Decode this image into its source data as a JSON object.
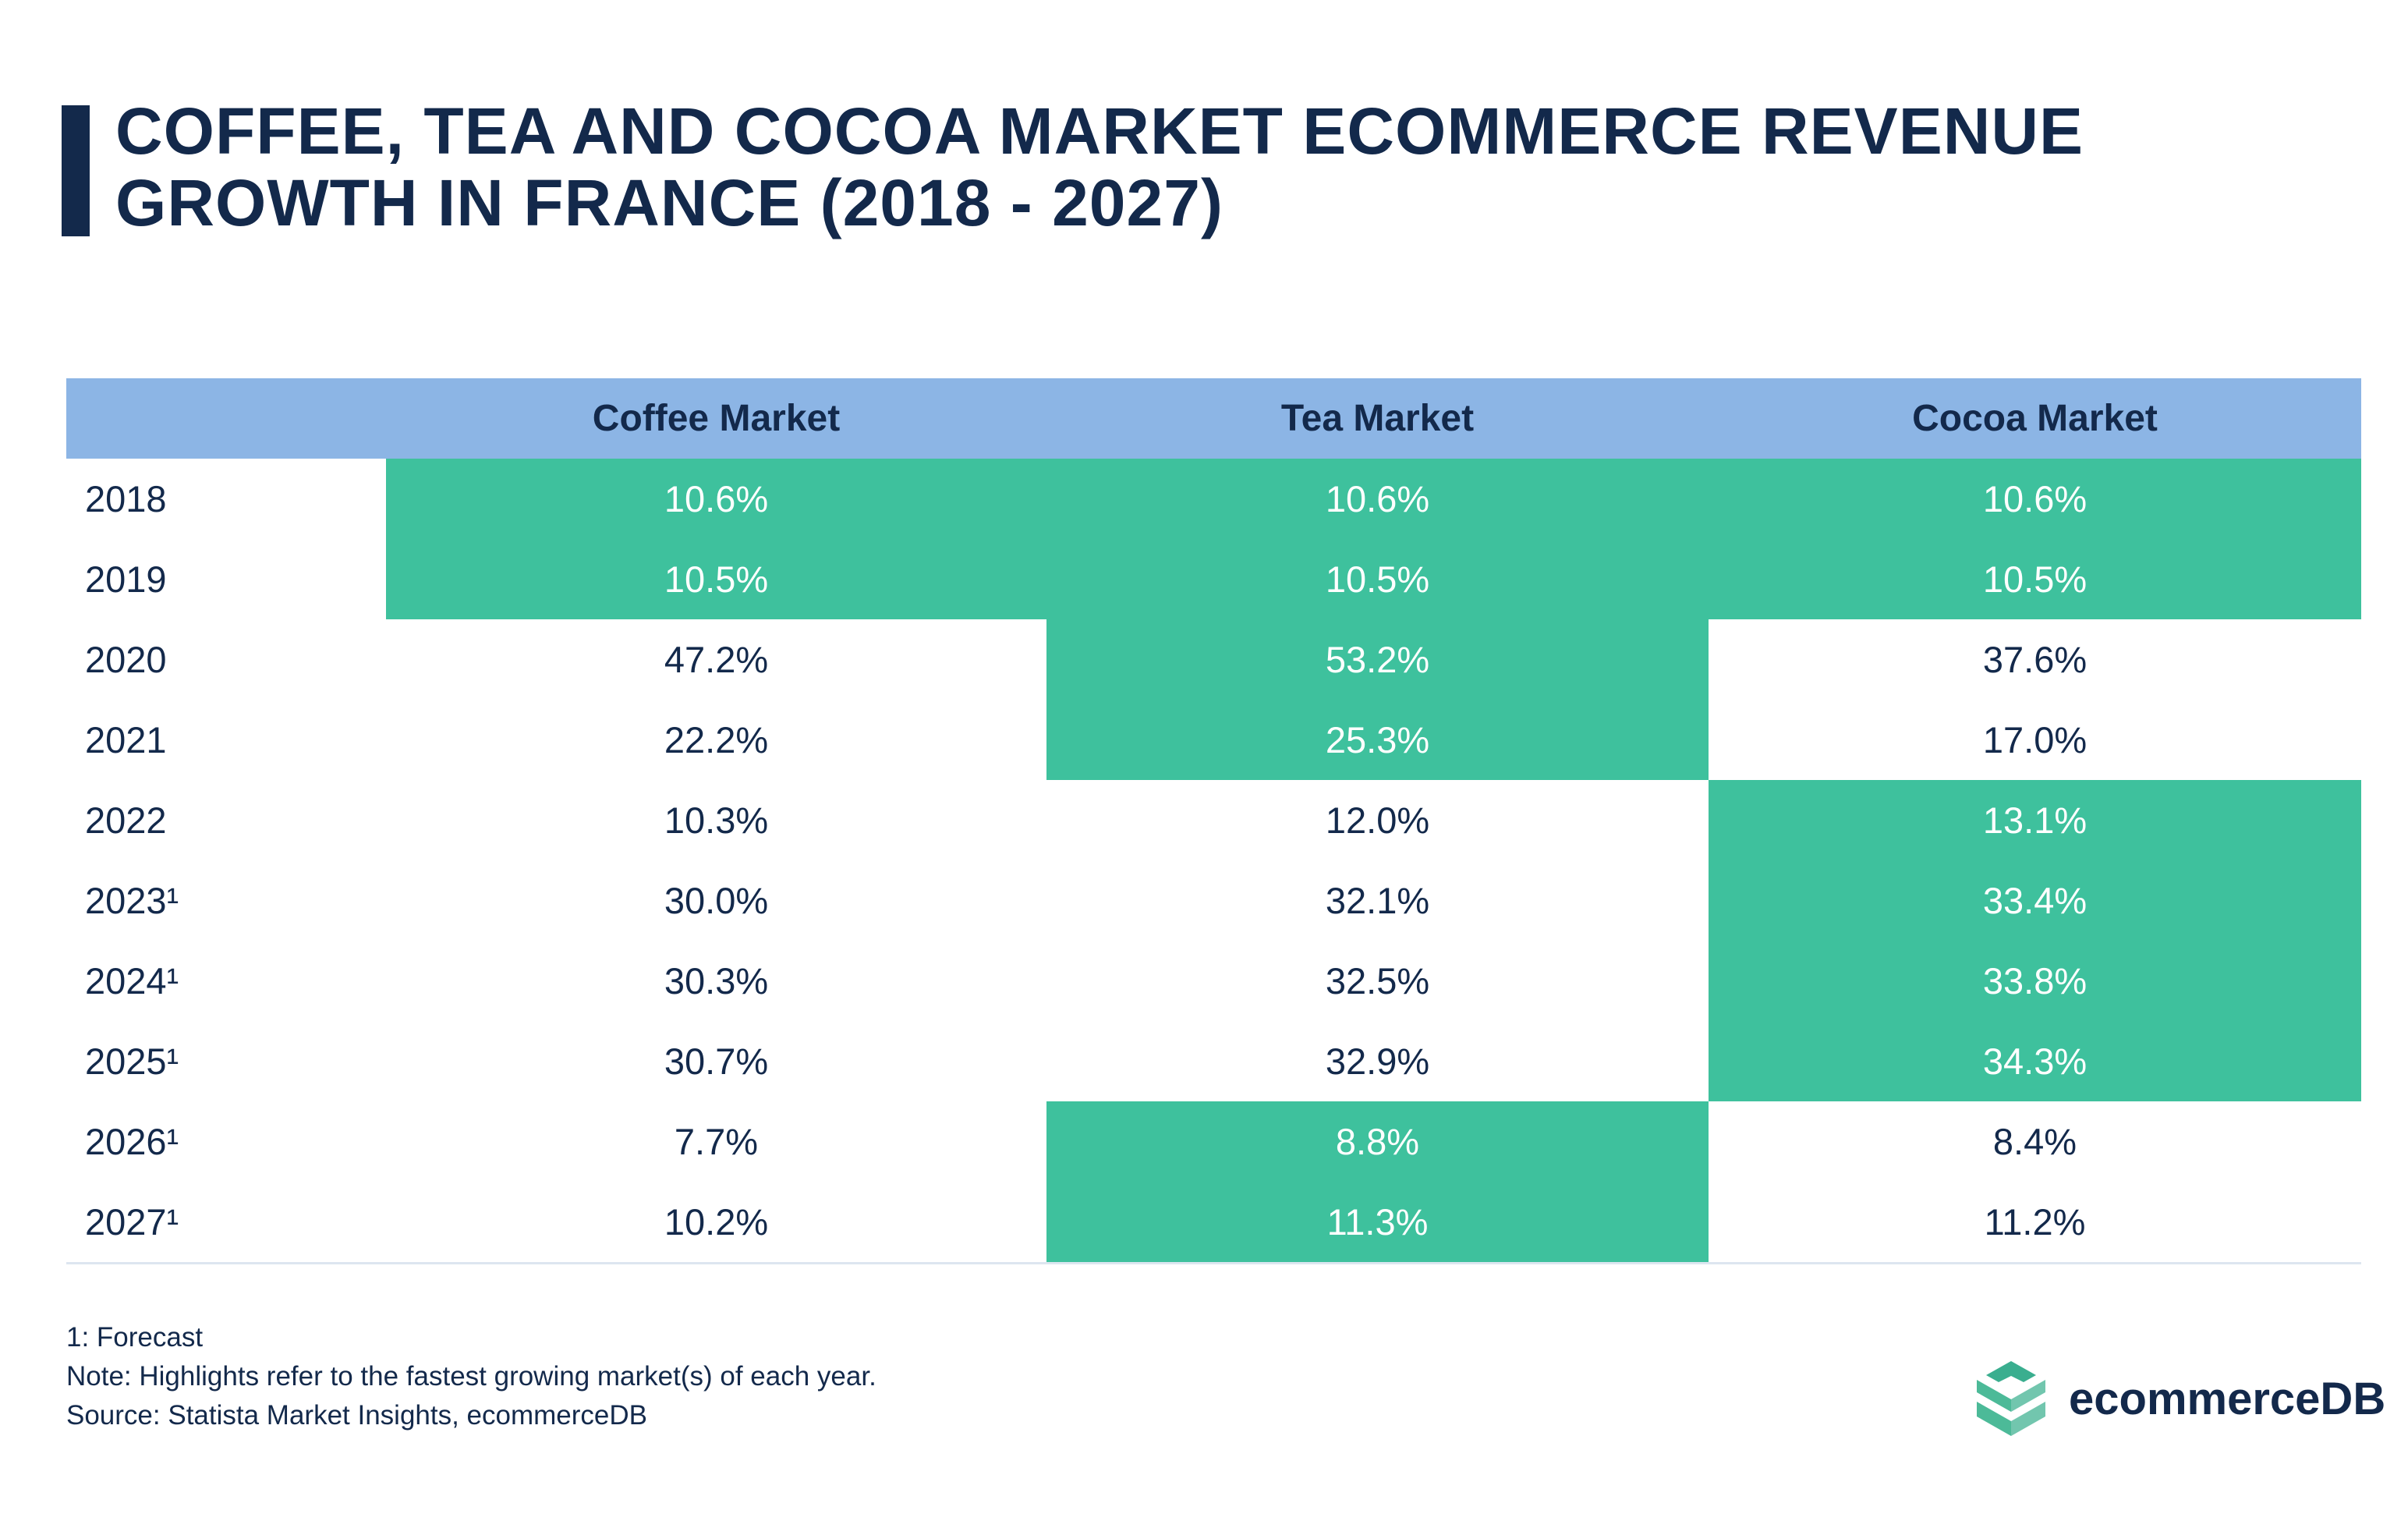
{
  "title": "COFFEE, TEA AND COCOA MARKET ECOMMERCE REVENUE GROWTH IN FRANCE (2018 - 2027)",
  "colors": {
    "header": "#8cb5e5",
    "highlight": "#3ec19d",
    "text": "#13294b"
  },
  "chart_data": {
    "type": "table",
    "columns": [
      "",
      "Coffee Market",
      "Tea Market",
      "Cocoa Market"
    ],
    "rows": [
      {
        "year": "2018",
        "values": [
          "10.6%",
          "10.6%",
          "10.6%"
        ],
        "highlight": [
          true,
          true,
          true
        ]
      },
      {
        "year": "2019",
        "values": [
          "10.5%",
          "10.5%",
          "10.5%"
        ],
        "highlight": [
          true,
          true,
          true
        ]
      },
      {
        "year": "2020",
        "values": [
          "47.2%",
          "53.2%",
          "37.6%"
        ],
        "highlight": [
          false,
          true,
          false
        ]
      },
      {
        "year": "2021",
        "values": [
          "22.2%",
          "25.3%",
          "17.0%"
        ],
        "highlight": [
          false,
          true,
          false
        ]
      },
      {
        "year": "2022",
        "values": [
          "10.3%",
          "12.0%",
          "13.1%"
        ],
        "highlight": [
          false,
          false,
          true
        ]
      },
      {
        "year": "2023¹",
        "values": [
          "30.0%",
          "32.1%",
          "33.4%"
        ],
        "highlight": [
          false,
          false,
          true
        ]
      },
      {
        "year": "2024¹",
        "values": [
          "30.3%",
          "32.5%",
          "33.8%"
        ],
        "highlight": [
          false,
          false,
          true
        ]
      },
      {
        "year": "2025¹",
        "values": [
          "30.7%",
          "32.9%",
          "34.3%"
        ],
        "highlight": [
          false,
          false,
          true
        ]
      },
      {
        "year": "2026¹",
        "values": [
          "7.7%",
          "8.8%",
          "8.4%"
        ],
        "highlight": [
          false,
          true,
          false
        ]
      },
      {
        "year": "2027¹",
        "values": [
          "10.2%",
          "11.3%",
          "11.2%"
        ],
        "highlight": [
          false,
          true,
          false
        ]
      }
    ]
  },
  "footer": {
    "forecast": "1: Forecast",
    "note": "Note: Highlights refer to the fastest growing market(s) of each year.",
    "source": "Source: Statista Market Insights, ecommerceDB"
  },
  "logo": {
    "text": "ecommerceDB"
  }
}
